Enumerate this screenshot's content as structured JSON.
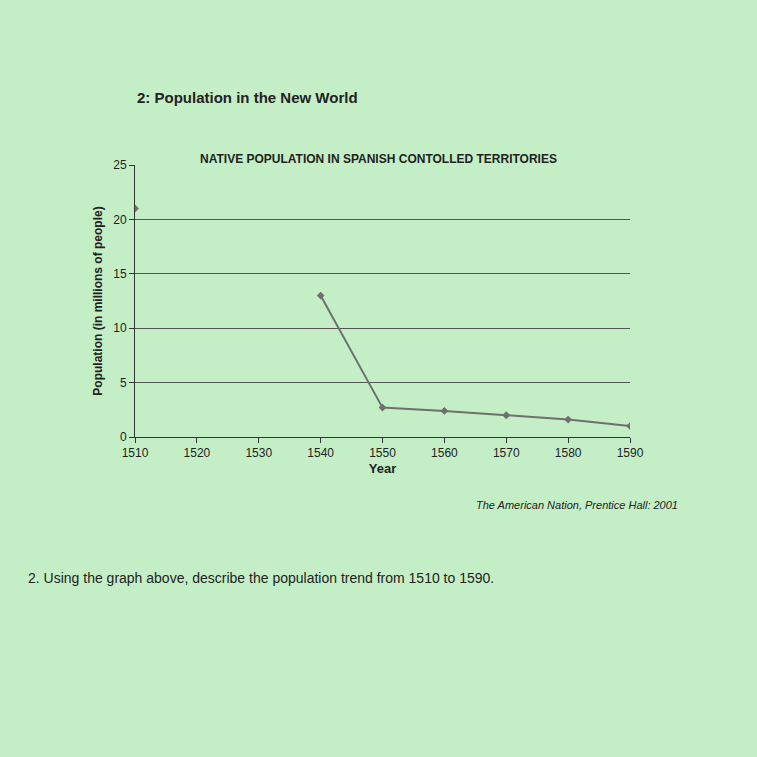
{
  "chart_data": {
    "type": "line",
    "title": "NATIVE POPULATION IN SPANISH CONTOLLED TERRITORIES",
    "x_label": "Year",
    "y_label": "Population (in millions of people)",
    "x": [
      1510,
      1520,
      1530,
      1540,
      1550,
      1560,
      1570,
      1580,
      1590
    ],
    "values": [
      21,
      null,
      null,
      13,
      2.7,
      2.4,
      2.0,
      1.6,
      1.0
    ],
    "color": "#6f6f6f",
    "marker": "diamond",
    "xlim": [
      1510,
      1590
    ],
    "xticks": [
      1510,
      1520,
      1530,
      1540,
      1550,
      1560,
      1570,
      1580,
      1590
    ],
    "ylim": [
      0,
      25
    ],
    "yticks": [
      0,
      5,
      10,
      15,
      20,
      25
    ],
    "grid": true,
    "annotations": [
      "2: Population in the New World",
      "The American Nation, Prentice Hall: 2001",
      "2. Using the graph above, describe the population trend from 1510 to 1590."
    ]
  }
}
